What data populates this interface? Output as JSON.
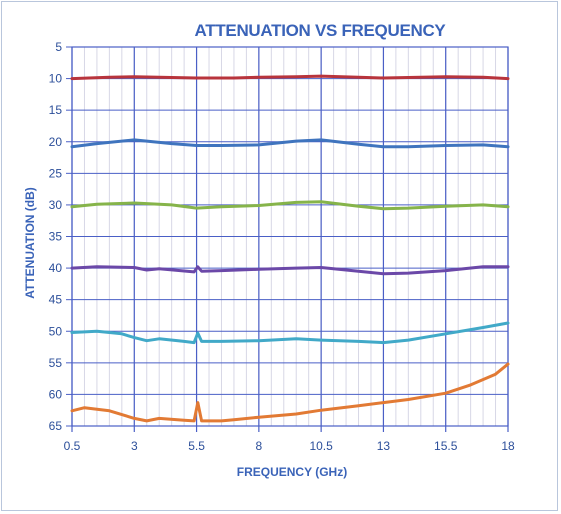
{
  "chart_data": {
    "type": "line",
    "title": "ATTENUATION VS FREQUENCY",
    "xlabel": "FREQUENCY (GHz)",
    "ylabel": "ATTENUATION (dB)",
    "xlim": [
      0.5,
      18
    ],
    "ylim": [
      5,
      65
    ],
    "y_inverted": true,
    "x_ticks": [
      "0.5",
      "3",
      "5.5",
      "8",
      "10.5",
      "13",
      "15.5",
      "18"
    ],
    "y_ticks": [
      "5",
      "10",
      "15",
      "20",
      "25",
      "30",
      "35",
      "40",
      "45",
      "50",
      "55",
      "60",
      "65"
    ],
    "grid": true,
    "minor_grid": true,
    "colors": {
      "title": "#3a63b8",
      "axis": "#3a63b8",
      "grid_major": "#4a5fc6",
      "grid_minor": "#d7d7e6"
    },
    "series": [
      {
        "color": "#b8343c",
        "x": [
          0.5,
          2,
          3,
          4,
          5.5,
          7,
          8,
          9.5,
          10.5,
          12,
          13,
          14.5,
          15.5,
          17,
          18
        ],
        "y": [
          10.0,
          9.8,
          9.7,
          9.8,
          9.9,
          9.9,
          9.8,
          9.7,
          9.6,
          9.8,
          9.9,
          9.8,
          9.7,
          9.8,
          10.0
        ]
      },
      {
        "color": "#3f74be",
        "x": [
          0.5,
          1.5,
          3,
          4.5,
          5.5,
          6.5,
          8,
          9.5,
          10.5,
          12,
          13,
          14,
          15.5,
          17,
          18
        ],
        "y": [
          20.8,
          20.3,
          19.7,
          20.3,
          20.6,
          20.6,
          20.5,
          19.9,
          19.7,
          20.4,
          20.8,
          20.8,
          20.6,
          20.5,
          20.8
        ]
      },
      {
        "color": "#86b44a",
        "x": [
          0.5,
          1.5,
          3,
          4.5,
          5.5,
          6.5,
          8,
          9.5,
          10.5,
          12,
          13,
          14,
          15.5,
          17,
          18
        ],
        "y": [
          30.3,
          29.9,
          29.7,
          30.0,
          30.5,
          30.3,
          30.1,
          29.6,
          29.5,
          30.2,
          30.6,
          30.5,
          30.2,
          30.0,
          30.3
        ]
      },
      {
        "color": "#6b48a8",
        "x": [
          0.5,
          1.5,
          3,
          3.5,
          4,
          5.4,
          5.55,
          5.7,
          6.5,
          8,
          9.5,
          10.5,
          12,
          13,
          14,
          15.5,
          17,
          18
        ],
        "y": [
          40.0,
          39.8,
          39.9,
          40.3,
          40.1,
          40.6,
          39.8,
          40.5,
          40.4,
          40.2,
          40.0,
          39.9,
          40.5,
          40.9,
          40.8,
          40.4,
          39.8,
          39.8
        ]
      },
      {
        "color": "#41a9c8",
        "x": [
          0.5,
          1.5,
          2.5,
          3,
          3.5,
          4,
          5,
          5.4,
          5.55,
          5.7,
          6.5,
          8,
          9.5,
          10.5,
          12,
          13,
          14,
          15.5,
          17,
          18
        ],
        "y": [
          50.2,
          50.0,
          50.4,
          51.0,
          51.5,
          51.2,
          51.6,
          51.8,
          50.3,
          51.6,
          51.6,
          51.5,
          51.2,
          51.4,
          51.6,
          51.8,
          51.4,
          50.4,
          49.4,
          48.7
        ]
      },
      {
        "color": "#e27a34",
        "x": [
          0.5,
          1,
          2,
          3,
          3.5,
          4,
          5,
          5.4,
          5.55,
          5.7,
          6.5,
          7,
          8,
          9.5,
          10.5,
          12,
          13,
          14,
          15.5,
          16.5,
          17.5,
          18
        ],
        "y": [
          62.6,
          62.1,
          62.6,
          63.8,
          64.2,
          63.8,
          64.1,
          64.2,
          61.3,
          64.2,
          64.2,
          64.0,
          63.6,
          63.1,
          62.5,
          61.8,
          61.3,
          60.8,
          59.8,
          58.5,
          56.8,
          55.2
        ]
      }
    ]
  }
}
